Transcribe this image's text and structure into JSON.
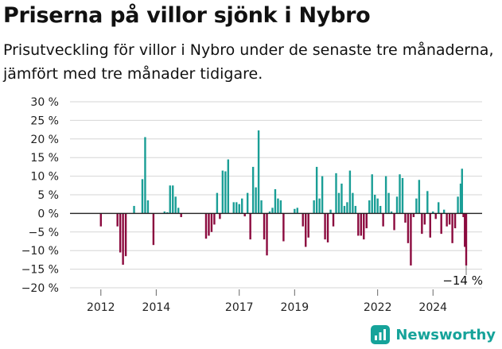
{
  "header": {
    "title": "Priserna på villor sjönk i Nybro",
    "subtitle": "Prisutveckling för villor i Nybro under de senaste tre månaderna, jämfört med tre månader tidigare."
  },
  "brand": {
    "name": "Newsworthy",
    "color": "#16a39a"
  },
  "colors": {
    "positive": "#1a9e96",
    "negative": "#8b0a3e",
    "grid": "#d6d6d6",
    "zero": "#222222"
  },
  "chart_data": {
    "type": "bar",
    "ylim": [
      -20,
      30
    ],
    "yticks": [
      30,
      25,
      20,
      15,
      10,
      5,
      0,
      -5,
      -10,
      -15,
      -20
    ],
    "ytick_labels": [
      "30 %",
      "25 %",
      "20 %",
      "15 %",
      "10 %",
      "5 %",
      "0 %",
      "−5 %",
      "−10 %",
      "−15 %",
      "−20 %"
    ],
    "xlim": [
      2011.0,
      2025.2
    ],
    "xtick_labels": [
      "2012",
      "2014",
      "2017",
      "2019",
      "2022",
      "2024"
    ],
    "xtick_values": [
      2012,
      2014,
      2017,
      2019,
      2022,
      2024
    ],
    "last_value_label": "−14 %",
    "bars": [
      [
        2012.0,
        -3.5
      ],
      [
        2012.6,
        -3.5
      ],
      [
        2012.7,
        -10.5
      ],
      [
        2012.8,
        -13.8
      ],
      [
        2012.9,
        -11.5
      ],
      [
        2013.2,
        2.0
      ],
      [
        2013.5,
        9.2
      ],
      [
        2013.6,
        20.5
      ],
      [
        2013.7,
        3.5
      ],
      [
        2013.9,
        -8.5
      ],
      [
        2014.3,
        0.5
      ],
      [
        2014.4,
        0.3
      ],
      [
        2014.5,
        7.5
      ],
      [
        2014.6,
        7.5
      ],
      [
        2014.7,
        4.5
      ],
      [
        2014.8,
        1.5
      ],
      [
        2014.9,
        -1.0
      ],
      [
        2015.8,
        -6.8
      ],
      [
        2015.9,
        -6.0
      ],
      [
        2016.0,
        -5.0
      ],
      [
        2016.1,
        -3.0
      ],
      [
        2016.2,
        5.5
      ],
      [
        2016.3,
        -1.5
      ],
      [
        2016.4,
        11.5
      ],
      [
        2016.5,
        11.3
      ],
      [
        2016.6,
        14.5
      ],
      [
        2016.8,
        3.0
      ],
      [
        2016.9,
        3.0
      ],
      [
        2017.0,
        2.5
      ],
      [
        2017.1,
        4.0
      ],
      [
        2017.2,
        -0.8
      ],
      [
        2017.3,
        5.5
      ],
      [
        2017.4,
        -7.0
      ],
      [
        2017.5,
        12.5
      ],
      [
        2017.6,
        7.0
      ],
      [
        2017.7,
        22.3
      ],
      [
        2017.8,
        3.5
      ],
      [
        2017.9,
        -7.0
      ],
      [
        2018.0,
        -11.3
      ],
      [
        2018.1,
        0.5
      ],
      [
        2018.2,
        1.5
      ],
      [
        2018.3,
        6.5
      ],
      [
        2018.4,
        4.0
      ],
      [
        2018.5,
        3.5
      ],
      [
        2018.6,
        -7.5
      ],
      [
        2019.0,
        1.2
      ],
      [
        2019.1,
        1.5
      ],
      [
        2019.3,
        -3.5
      ],
      [
        2019.4,
        -9.0
      ],
      [
        2019.5,
        -6.5
      ],
      [
        2019.7,
        3.5
      ],
      [
        2019.8,
        12.5
      ],
      [
        2019.9,
        4.0
      ],
      [
        2020.0,
        10.0
      ],
      [
        2020.1,
        -7.0
      ],
      [
        2020.2,
        -7.8
      ],
      [
        2020.3,
        1.0
      ],
      [
        2020.4,
        -3.5
      ],
      [
        2020.5,
        10.8
      ],
      [
        2020.6,
        5.5
      ],
      [
        2020.7,
        8.0
      ],
      [
        2020.8,
        2.0
      ],
      [
        2020.9,
        3.0
      ],
      [
        2021.0,
        11.5
      ],
      [
        2021.1,
        5.5
      ],
      [
        2021.2,
        2.0
      ],
      [
        2021.3,
        -6.0
      ],
      [
        2021.4,
        -6.0
      ],
      [
        2021.5,
        -7.0
      ],
      [
        2021.6,
        -4.0
      ],
      [
        2021.7,
        3.5
      ],
      [
        2021.8,
        10.5
      ],
      [
        2021.9,
        5.0
      ],
      [
        2022.0,
        4.0
      ],
      [
        2022.1,
        2.0
      ],
      [
        2022.2,
        -3.5
      ],
      [
        2022.3,
        10.0
      ],
      [
        2022.4,
        5.5
      ],
      [
        2022.5,
        0.5
      ],
      [
        2022.6,
        -4.5
      ],
      [
        2022.7,
        4.5
      ],
      [
        2022.8,
        10.5
      ],
      [
        2022.9,
        9.5
      ],
      [
        2023.0,
        -2.5
      ],
      [
        2023.1,
        -8.0
      ],
      [
        2023.2,
        -14.0
      ],
      [
        2023.3,
        -1.0
      ],
      [
        2023.4,
        4.0
      ],
      [
        2023.5,
        9.0
      ],
      [
        2023.6,
        -5.5
      ],
      [
        2023.7,
        -3.0
      ],
      [
        2023.8,
        6.0
      ],
      [
        2023.9,
        -6.5
      ],
      [
        2024.0,
        0.5
      ],
      [
        2024.1,
        -1.5
      ],
      [
        2024.2,
        3.0
      ],
      [
        2024.3,
        -5.5
      ],
      [
        2024.4,
        1.0
      ],
      [
        2024.5,
        -3.5
      ],
      [
        2024.6,
        -3.0
      ],
      [
        2024.7,
        -8.0
      ],
      [
        2024.8,
        -4.0
      ],
      [
        2024.9,
        4.5
      ],
      [
        2025.0,
        8.0
      ],
      [
        2025.05,
        12.0
      ],
      [
        2025.1,
        -1.0
      ],
      [
        2025.15,
        -9.0
      ],
      [
        2025.2,
        -14.0
      ]
    ]
  }
}
